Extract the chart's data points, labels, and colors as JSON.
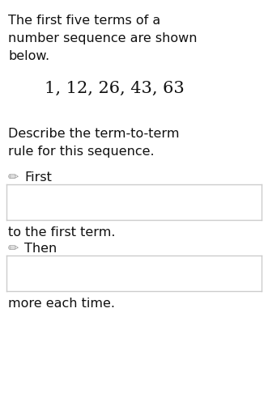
{
  "bg_color": "#ffffff",
  "text_color": "#111111",
  "pencil_color": "#999999",
  "box_edge_color": "#cccccc",
  "line1": "The first five terms of a",
  "line2": "number sequence are shown",
  "line3": "below.",
  "sequence": "1, 12, 26, 43, 63",
  "line4": "Describe the term-to-term",
  "line5": "rule for this sequence.",
  "label_first": "First",
  "label_between": "to the first term.",
  "label_then": "Then",
  "label_end": "more each time.",
  "font_size_body": 11.5,
  "font_size_seq": 15,
  "pencil_icon": "✏",
  "fig_width": 3.31,
  "fig_height": 5.12,
  "dpi": 100
}
